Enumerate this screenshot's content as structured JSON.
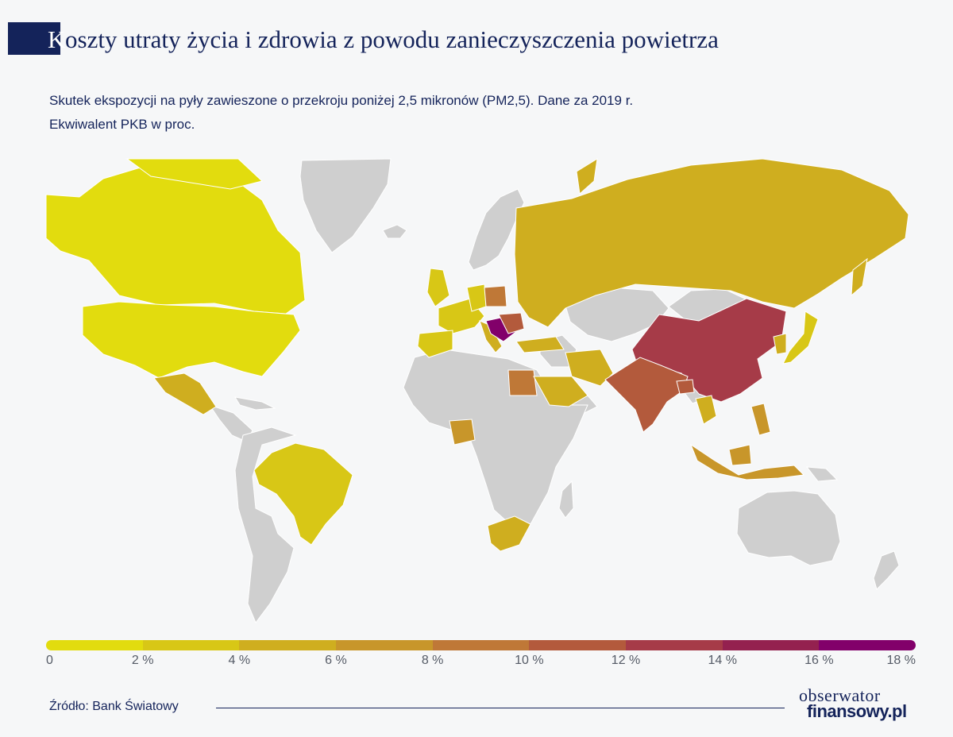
{
  "title": {
    "first_letter": "K",
    "rest": "oszty utraty życia i zdrowia z powodu zanieczyszczenia powietrza"
  },
  "subtitle": {
    "line1": "Skutek ekspozycji na pyły zawieszone o przekroju poniżej 2,5 mikronów (PM2,5).  Dane za 2019 r.",
    "line2": "Ekwiwalent PKB w proc."
  },
  "legend": {
    "colors": [
      "#e2dc0e",
      "#d8c716",
      "#cfae1f",
      "#c8962a",
      "#bf7837",
      "#b35a3c",
      "#a63b48",
      "#94214f",
      "#82006a"
    ],
    "labels": [
      "0",
      "2 %",
      "4 %",
      "6 %",
      "8 %",
      "10 %",
      "12 %",
      "14 %",
      "16 %",
      "18 %"
    ]
  },
  "colors": {
    "no_data": "#cfcfcf"
  },
  "source": "Źródło: Bank Światowy",
  "logo": {
    "line1": "obserwator",
    "line2": "finansowy.pl"
  }
}
